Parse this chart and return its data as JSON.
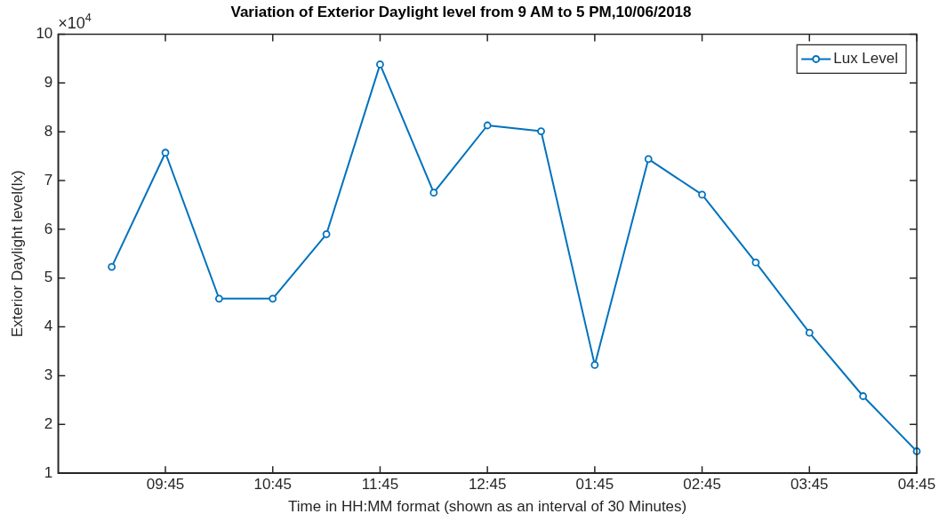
{
  "chart_data": {
    "type": "line",
    "title": "Variation of Exterior Daylight level from 9 AM to 5 PM,10/06/2018",
    "xlabel": "Time in HH:MM format (shown as an interval of 30 Minutes)",
    "ylabel": "Exterior Daylight level(lx)",
    "annotations": [
      "×10$^{4}$"
    ],
    "categories": [
      null,
      null,
      "09:45",
      null,
      "10:45",
      null,
      "11:45",
      null,
      "12:45",
      null,
      "01:45",
      null,
      "02:45",
      null,
      "03:45",
      null,
      "04:45"
    ],
    "series": [
      {
        "name": "Lux Level",
        "color": "#0072bd",
        "values": [
          null,
          5.23,
          7.57,
          4.58,
          4.58,
          5.9,
          9.38,
          6.75,
          8.13,
          8.01,
          3.22,
          7.44,
          6.71,
          5.32,
          3.88,
          2.58,
          1.45
        ]
      }
    ],
    "ylim": [
      1,
      10
    ],
    "yticks": [
      1,
      2,
      3,
      4,
      5,
      6,
      7,
      8,
      9,
      10
    ],
    "grid": false,
    "legend": "top right",
    "marker": "circle",
    "line_style": "solid"
  }
}
